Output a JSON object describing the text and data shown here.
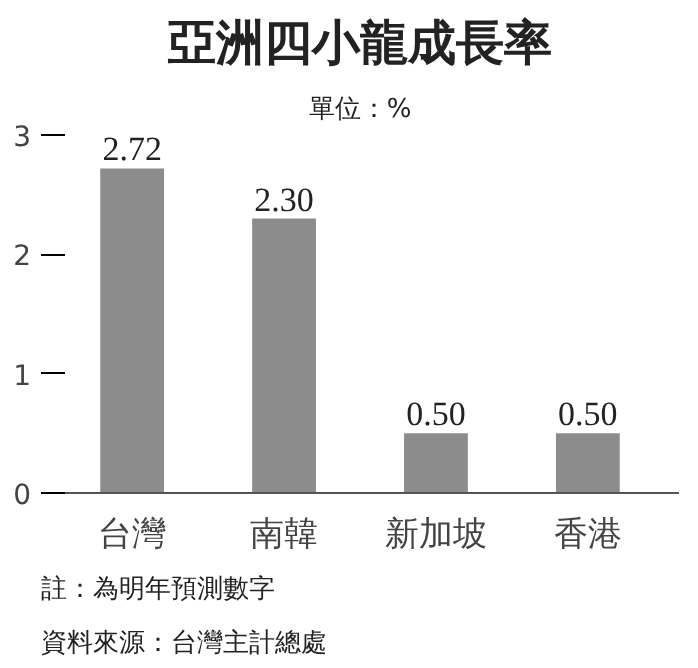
{
  "chart_data": {
    "type": "bar",
    "title": "亞洲四小龍成長率",
    "subtitle": "單位：%",
    "categories": [
      "台灣",
      "南韓",
      "新加坡",
      "香港"
    ],
    "values": [
      2.72,
      2.3,
      0.5,
      0.5
    ],
    "value_labels": [
      "2.72",
      "2.30",
      "0.50",
      "0.50"
    ],
    "color": "#8c8c8c",
    "ylim": [
      0,
      3
    ],
    "yticks": [
      0,
      1,
      2,
      3
    ],
    "grid": false,
    "annotations": [
      "註：為明年預測數字",
      "資料來源：台灣主計總處"
    ]
  }
}
